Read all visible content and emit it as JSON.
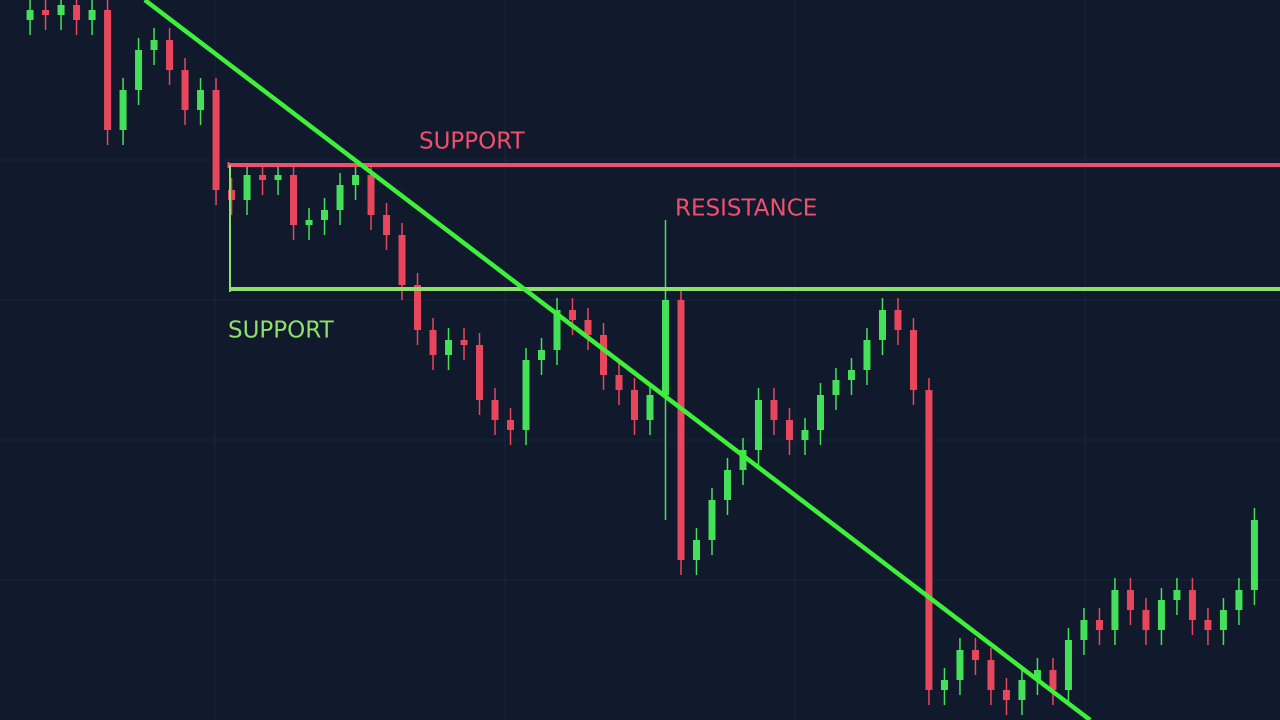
{
  "chart_data": {
    "type": "candlestick",
    "up_color": "#45e05a",
    "down_color": "#e8465c",
    "xlim": [
      -1.94,
      80.65
    ],
    "ylim": [
      0,
      720
    ],
    "candles": [
      [
        700,
        722,
        685,
        710
      ],
      [
        710,
        722,
        690,
        705
      ],
      [
        705,
        727,
        690,
        715
      ],
      [
        715,
        727,
        685,
        700
      ],
      [
        700,
        722,
        685,
        710
      ],
      [
        710,
        722,
        575,
        590
      ],
      [
        590,
        642,
        575,
        630
      ],
      [
        630,
        682,
        615,
        670
      ],
      [
        670,
        692,
        655,
        680
      ],
      [
        680,
        692,
        635,
        650
      ],
      [
        650,
        662,
        595,
        610
      ],
      [
        610,
        642,
        595,
        630
      ],
      [
        630,
        642,
        515,
        530
      ],
      [
        530,
        542,
        505,
        520
      ],
      [
        520,
        557,
        505,
        545
      ],
      [
        545,
        557,
        525,
        540
      ],
      [
        540,
        557,
        525,
        545
      ],
      [
        545,
        557,
        480,
        495
      ],
      [
        495,
        512,
        480,
        500
      ],
      [
        500,
        522,
        485,
        510
      ],
      [
        510,
        547,
        495,
        535
      ],
      [
        535,
        557,
        520,
        545
      ],
      [
        545,
        557,
        490,
        505
      ],
      [
        505,
        517,
        470,
        485
      ],
      [
        485,
        497,
        420,
        435
      ],
      [
        435,
        447,
        375,
        390
      ],
      [
        390,
        402,
        350,
        365
      ],
      [
        365,
        392,
        350,
        380
      ],
      [
        380,
        392,
        360,
        375
      ],
      [
        375,
        387,
        305,
        320
      ],
      [
        320,
        332,
        285,
        300
      ],
      [
        300,
        312,
        275,
        290
      ],
      [
        290,
        372,
        275,
        360
      ],
      [
        360,
        382,
        345,
        370
      ],
      [
        370,
        422,
        355,
        410
      ],
      [
        410,
        422,
        385,
        400
      ],
      [
        400,
        412,
        370,
        385
      ],
      [
        385,
        397,
        330,
        345
      ],
      [
        345,
        357,
        315,
        330
      ],
      [
        330,
        342,
        285,
        300
      ],
      [
        300,
        337,
        285,
        325
      ],
      [
        325,
        500,
        200,
        420
      ],
      [
        420,
        432,
        145,
        160
      ],
      [
        160,
        192,
        145,
        180
      ],
      [
        180,
        232,
        165,
        220
      ],
      [
        220,
        262,
        205,
        250
      ],
      [
        250,
        282,
        235,
        270
      ],
      [
        270,
        332,
        255,
        320
      ],
      [
        320,
        332,
        285,
        300
      ],
      [
        300,
        312,
        265,
        280
      ],
      [
        280,
        302,
        265,
        290
      ],
      [
        290,
        337,
        275,
        325
      ],
      [
        325,
        352,
        310,
        340
      ],
      [
        340,
        362,
        325,
        350
      ],
      [
        350,
        392,
        335,
        380
      ],
      [
        380,
        422,
        365,
        410
      ],
      [
        410,
        422,
        375,
        390
      ],
      [
        390,
        402,
        315,
        330
      ],
      [
        330,
        342,
        15,
        30
      ],
      [
        30,
        52,
        15,
        40
      ],
      [
        40,
        82,
        25,
        70
      ],
      [
        70,
        82,
        45,
        60
      ],
      [
        60,
        72,
        15,
        30
      ],
      [
        30,
        42,
        5,
        20
      ],
      [
        20,
        52,
        5,
        40
      ],
      [
        40,
        62,
        25,
        50
      ],
      [
        50,
        62,
        15,
        30
      ],
      [
        30,
        92,
        15,
        80
      ],
      [
        80,
        112,
        65,
        100
      ],
      [
        100,
        112,
        75,
        90
      ],
      [
        90,
        142,
        75,
        130
      ],
      [
        130,
        142,
        95,
        110
      ],
      [
        110,
        122,
        75,
        90
      ],
      [
        90,
        132,
        75,
        120
      ],
      [
        120,
        142,
        105,
        130
      ],
      [
        130,
        142,
        85,
        100
      ],
      [
        100,
        112,
        75,
        90
      ],
      [
        90,
        122,
        75,
        110
      ],
      [
        110,
        142,
        95,
        130
      ],
      [
        130,
        212,
        115,
        200
      ]
    ],
    "levels": [
      {
        "label": "SUPPORT",
        "value": 555,
        "start": 12.8,
        "color": "#f0506e"
      },
      {
        "label": "SUPPORT",
        "value": 431,
        "start": 12.9,
        "color": "#8ee06a"
      }
    ],
    "annotations": [
      {
        "text": "RESISTANCE",
        "color": "#f0506e"
      }
    ],
    "trendline": {
      "color": "#3ef03a",
      "points": [
        [
          7.4,
          720
        ],
        [
          68.4,
          0
        ]
      ]
    }
  }
}
